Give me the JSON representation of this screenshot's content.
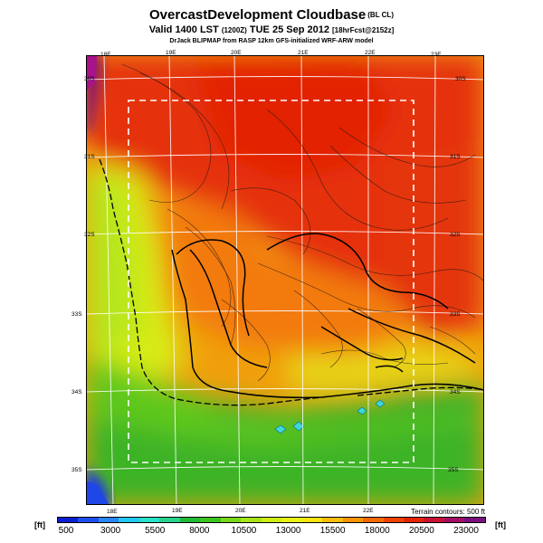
{
  "header": {
    "title": "OvercastDevelopment Cloudbase",
    "title_tag": "(BL CL)",
    "subtitle_main": "Valid 1400 LST",
    "subtitle_small1": "(1200Z)",
    "subtitle_date": "TUE 25 Sep 2012",
    "subtitle_small2": "[18hrFcst@2152z]",
    "credit": "DrJack BLIPMAP from RASP 12km GFS-initialized WRF-ARW model"
  },
  "map": {
    "top_lon_labels": [
      "18E",
      "19E",
      "20E",
      "21E",
      "22E",
      "23E"
    ],
    "bottom_lon_labels": [
      "18E",
      "19E",
      "20E",
      "21E",
      "22E"
    ],
    "left_lat_labels": [
      "30S",
      "31S",
      "32S",
      "33S",
      "34S",
      "35S"
    ],
    "right_lat_labels": [
      "30S",
      "31S",
      "32S",
      "33S",
      "34S",
      "35S"
    ],
    "terrain_note": "Terrain contours: 500 ft"
  },
  "legend": {
    "unit_left": "[ft]",
    "unit_right": "[ft]",
    "labels": [
      "500",
      "3000",
      "5500",
      "8000",
      "10500",
      "13000",
      "15500",
      "18000",
      "20500",
      "23000"
    ],
    "colors": [
      "#0a1fd2",
      "#1d4ff0",
      "#2a86f6",
      "#23c7f3",
      "#27e2c8",
      "#28d28e",
      "#20b938",
      "#3bc51c",
      "#7ad81a",
      "#a8e516",
      "#cfef14",
      "#e8f412",
      "#fce410",
      "#fcbd0c",
      "#f99409",
      "#f46a07",
      "#ee4305",
      "#e42504",
      "#c91234",
      "#a20d66",
      "#7b0e7e"
    ]
  }
}
